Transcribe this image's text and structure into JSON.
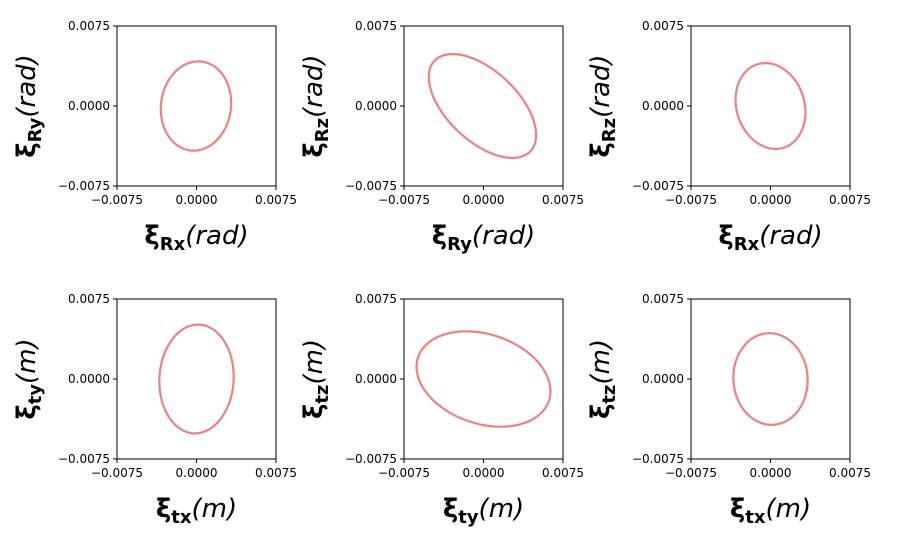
{
  "chart_data": [
    {
      "type": "line",
      "xlabel": {
        "sym": "ξ",
        "sub": "Rx",
        "unit": "(rad)"
      },
      "ylabel": {
        "sym": "ξ",
        "sub": "Ry",
        "unit": "(rad)"
      },
      "xlim": [
        -0.0075,
        0.0075
      ],
      "ylim": [
        -0.0075,
        0.0075
      ],
      "xticks": [
        "−0.0075",
        "0.0000",
        "0.0075"
      ],
      "yticks": [
        "−0.0075",
        "0.0000",
        "0.0075"
      ],
      "color": "#f08080",
      "ellipse": {
        "cx": -5e-05,
        "cy": 0.0,
        "rx": 0.0033,
        "ry": 0.0042,
        "angle_deg": -8
      }
    },
    {
      "type": "line",
      "xlabel": {
        "sym": "ξ",
        "sub": "Ry",
        "unit": "(rad)"
      },
      "ylabel": {
        "sym": "ξ",
        "sub": "Rz",
        "unit": "(rad)"
      },
      "xlim": [
        -0.0075,
        0.0075
      ],
      "ylim": [
        -0.0075,
        0.0075
      ],
      "xticks": [
        "−0.0075",
        "0.0000",
        "0.0075"
      ],
      "yticks": [
        "−0.0075",
        "0.0000",
        "0.0075"
      ],
      "color": "#f08080",
      "ellipse": {
        "cx": -0.0001,
        "cy": 0.0,
        "rx": 0.0062,
        "ry": 0.0033,
        "angle_deg": -43
      }
    },
    {
      "type": "line",
      "xlabel": {
        "sym": "ξ",
        "sub": "Rx",
        "unit": "(rad)"
      },
      "ylabel": {
        "sym": "ξ",
        "sub": "Rz",
        "unit": "(rad)"
      },
      "xlim": [
        -0.0075,
        0.0075
      ],
      "ylim": [
        -0.0075,
        0.0075
      ],
      "xticks": [
        "−0.0075",
        "0.0000",
        "0.0075"
      ],
      "yticks": [
        "−0.0075",
        "0.0000",
        "0.0075"
      ],
      "color": "#f08080",
      "ellipse": {
        "cx": 0.0,
        "cy": 0.0,
        "rx": 0.0032,
        "ry": 0.0041,
        "angle_deg": 18
      }
    },
    {
      "type": "line",
      "xlabel": {
        "sym": "ξ",
        "sub": "tx",
        "unit": "(m)"
      },
      "ylabel": {
        "sym": "ξ",
        "sub": "ty",
        "unit": "(m)"
      },
      "xlim": [
        -0.0075,
        0.0075
      ],
      "ylim": [
        -0.0075,
        0.0075
      ],
      "xticks": [
        "−0.0075",
        "0.0000",
        "0.0075"
      ],
      "yticks": [
        "−0.0075",
        "0.0000",
        "0.0075"
      ],
      "color": "#f08080",
      "ellipse": {
        "cx": 0.0,
        "cy": 0.0,
        "rx": 0.0035,
        "ry": 0.0051,
        "angle_deg": -3
      }
    },
    {
      "type": "line",
      "xlabel": {
        "sym": "ξ",
        "sub": "ty",
        "unit": "(m)"
      },
      "ylabel": {
        "sym": "ξ",
        "sub": "tz",
        "unit": "(m)"
      },
      "xlim": [
        -0.0075,
        0.0075
      ],
      "ylim": [
        -0.0075,
        0.0075
      ],
      "xticks": [
        "−0.0075",
        "0.0000",
        "0.0075"
      ],
      "yticks": [
        "−0.0075",
        "0.0000",
        "0.0075"
      ],
      "color": "#f08080",
      "ellipse": {
        "cx": 0.0,
        "cy": 0.0,
        "rx": 0.0065,
        "ry": 0.0042,
        "angle_deg": -18
      }
    },
    {
      "type": "line",
      "xlabel": {
        "sym": "ξ",
        "sub": "tx",
        "unit": "(m)"
      },
      "ylabel": {
        "sym": "ξ",
        "sub": "tz",
        "unit": "(m)"
      },
      "xlim": [
        -0.0075,
        0.0075
      ],
      "ylim": [
        -0.0075,
        0.0075
      ],
      "xticks": [
        "−0.0075",
        "0.0000",
        "0.0075"
      ],
      "yticks": [
        "−0.0075",
        "0.0000",
        "0.0075"
      ],
      "color": "#f08080",
      "ellipse": {
        "cx": 0.0,
        "cy": 0.0,
        "rx": 0.0035,
        "ry": 0.0043,
        "angle_deg": 4
      }
    }
  ]
}
